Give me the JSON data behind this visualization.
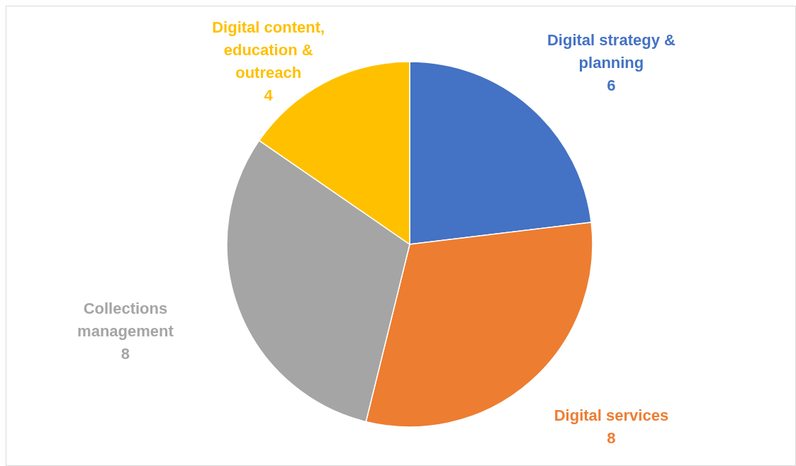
{
  "chart_data": {
    "type": "pie",
    "categories": [
      "Digital strategy & planning",
      "Digital services",
      "Collections management",
      "Digital content, education & outreach"
    ],
    "values": [
      6,
      8,
      8,
      4
    ],
    "colors": [
      "#4472c4",
      "#ed7d31",
      "#a5a5a5",
      "#ffc000"
    ],
    "data_labels": true
  }
}
